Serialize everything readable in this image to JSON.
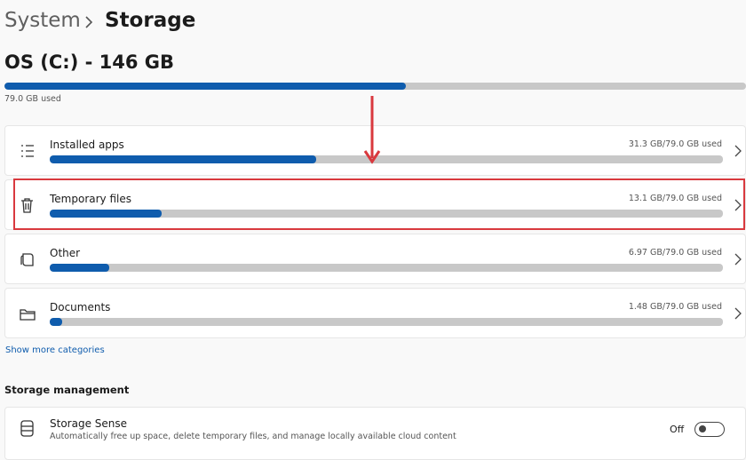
{
  "breadcrumb": {
    "parent": "System",
    "current": "Storage"
  },
  "disk": {
    "title": "OS (C:) - 146 GB",
    "capacity": 146,
    "used": 79.0,
    "used_label": "79.0 GB used"
  },
  "categories": [
    {
      "name": "Installed apps",
      "value": 31.3,
      "value_label": "31.3 GB/79.0 GB used"
    },
    {
      "name": "Temporary files",
      "value": 13.1,
      "value_label": "13.1 GB/79.0 GB used"
    },
    {
      "name": "Other",
      "value": 6.97,
      "value_label": "6.97 GB/79.0 GB used"
    },
    {
      "name": "Documents",
      "value": 1.48,
      "value_label": "1.48 GB/79.0 GB used"
    }
  ],
  "show_more": "Show more categories",
  "storage_management": {
    "heading": "Storage management",
    "items": [
      {
        "title": "Storage Sense",
        "description": "Automatically free up space, delete temporary files, and manage locally available cloud content",
        "toggle_label": "Off"
      }
    ]
  }
}
